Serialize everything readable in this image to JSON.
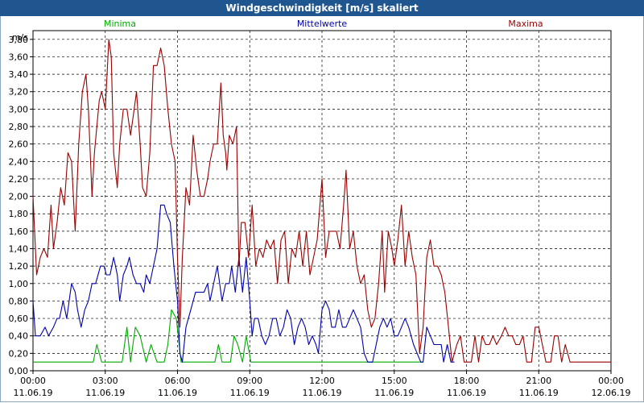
{
  "window": {
    "title": "Windgeschwindigkeit [m/s] skaliert"
  },
  "chart_data": {
    "type": "line",
    "title": "Windgeschwindigkeit [m/s] skaliert",
    "ylabel": "m/s",
    "ylim": [
      0,
      3.9
    ],
    "xlim": [
      0,
      24
    ],
    "y_ticks": [
      "0,00",
      "0,20",
      "0,40",
      "0,60",
      "0,80",
      "1,00",
      "1,20",
      "1,40",
      "1,60",
      "1,80",
      "2,00",
      "2,20",
      "2,40",
      "2,60",
      "2,80",
      "3,00",
      "3,20",
      "3,40",
      "3,60",
      "3,80"
    ],
    "x_ticks": [
      {
        "time": "00:00",
        "date": "11.06.19"
      },
      {
        "time": "03:00",
        "date": "11.06.19"
      },
      {
        "time": "06:00",
        "date": "11.06.19"
      },
      {
        "time": "09:00",
        "date": "11.06.19"
      },
      {
        "time": "12:00",
        "date": "11.06.19"
      },
      {
        "time": "15:00",
        "date": "11.06.19"
      },
      {
        "time": "18:00",
        "date": "11.06.19"
      },
      {
        "time": "21:00",
        "date": "11.06.19"
      },
      {
        "time": "00:00",
        "date": "12.06.19"
      }
    ],
    "grid": true,
    "legend_position": "top",
    "series": [
      {
        "name": "Minima",
        "color": "#00aa00",
        "points": [
          [
            0,
            0.1
          ],
          [
            2.5,
            0.1
          ],
          [
            2.65,
            0.3
          ],
          [
            2.85,
            0.1
          ],
          [
            3.7,
            0.1
          ],
          [
            3.9,
            0.5
          ],
          [
            4.05,
            0.1
          ],
          [
            4.25,
            0.5
          ],
          [
            4.45,
            0.4
          ],
          [
            4.7,
            0.1
          ],
          [
            4.9,
            0.3
          ],
          [
            5.15,
            0.1
          ],
          [
            5.45,
            0.1
          ],
          [
            5.6,
            0.3
          ],
          [
            5.75,
            0.7
          ],
          [
            5.95,
            0.6
          ],
          [
            6.15,
            0.1
          ],
          [
            7.55,
            0.1
          ],
          [
            7.7,
            0.3
          ],
          [
            7.85,
            0.1
          ],
          [
            8.2,
            0.1
          ],
          [
            8.35,
            0.4
          ],
          [
            8.5,
            0.3
          ],
          [
            8.7,
            0.1
          ],
          [
            8.85,
            0.4
          ],
          [
            9.05,
            0.1
          ],
          [
            16.2,
            0.1
          ]
        ]
      },
      {
        "name": "Mittelwerte",
        "color": "#0000aa",
        "points": [
          [
            0,
            0.8
          ],
          [
            0.1,
            0.4
          ],
          [
            0.3,
            0.4
          ],
          [
            0.5,
            0.5
          ],
          [
            0.65,
            0.4
          ],
          [
            0.85,
            0.5
          ],
          [
            1.0,
            0.6
          ],
          [
            1.1,
            0.6
          ],
          [
            1.25,
            0.8
          ],
          [
            1.4,
            0.6
          ],
          [
            1.6,
            1.0
          ],
          [
            1.75,
            0.9
          ],
          [
            1.85,
            0.7
          ],
          [
            2.0,
            0.5
          ],
          [
            2.15,
            0.7
          ],
          [
            2.3,
            0.8
          ],
          [
            2.45,
            1.0
          ],
          [
            2.6,
            1.0
          ],
          [
            2.8,
            1.2
          ],
          [
            2.95,
            1.2
          ],
          [
            3.05,
            1.1
          ],
          [
            3.2,
            1.1
          ],
          [
            3.35,
            1.3
          ],
          [
            3.5,
            1.1
          ],
          [
            3.6,
            0.8
          ],
          [
            3.75,
            1.1
          ],
          [
            3.9,
            1.2
          ],
          [
            4.0,
            1.3
          ],
          [
            4.15,
            1.1
          ],
          [
            4.3,
            1.0
          ],
          [
            4.45,
            1.0
          ],
          [
            4.6,
            0.9
          ],
          [
            4.7,
            1.1
          ],
          [
            4.85,
            1.0
          ],
          [
            5.0,
            1.2
          ],
          [
            5.15,
            1.4
          ],
          [
            5.3,
            1.9
          ],
          [
            5.45,
            1.9
          ],
          [
            5.55,
            1.8
          ],
          [
            5.7,
            1.7
          ],
          [
            5.85,
            1.2
          ],
          [
            6.0,
            0.8
          ],
          [
            6.1,
            0.2
          ],
          [
            6.2,
            0.1
          ],
          [
            6.35,
            0.5
          ],
          [
            6.55,
            0.7
          ],
          [
            6.75,
            0.9
          ],
          [
            6.95,
            0.9
          ],
          [
            7.1,
            0.9
          ],
          [
            7.25,
            1.0
          ],
          [
            7.35,
            0.8
          ],
          [
            7.5,
            1.0
          ],
          [
            7.65,
            1.2
          ],
          [
            7.75,
            1.0
          ],
          [
            7.85,
            0.8
          ],
          [
            8.0,
            1.0
          ],
          [
            8.15,
            1.0
          ],
          [
            8.25,
            1.2
          ],
          [
            8.4,
            0.9
          ],
          [
            8.55,
            1.3
          ],
          [
            8.7,
            0.9
          ],
          [
            8.85,
            1.3
          ],
          [
            9.0,
            0.8
          ],
          [
            9.1,
            0.4
          ],
          [
            9.2,
            0.6
          ],
          [
            9.35,
            0.6
          ],
          [
            9.5,
            0.4
          ],
          [
            9.65,
            0.3
          ],
          [
            9.8,
            0.4
          ],
          [
            9.95,
            0.6
          ],
          [
            10.1,
            0.6
          ],
          [
            10.25,
            0.4
          ],
          [
            10.4,
            0.5
          ],
          [
            10.55,
            0.7
          ],
          [
            10.7,
            0.6
          ],
          [
            10.85,
            0.3
          ],
          [
            11.0,
            0.5
          ],
          [
            11.15,
            0.6
          ],
          [
            11.3,
            0.5
          ],
          [
            11.45,
            0.3
          ],
          [
            11.6,
            0.4
          ],
          [
            11.75,
            0.3
          ],
          [
            11.85,
            0.2
          ],
          [
            12.0,
            0.7
          ],
          [
            12.15,
            0.8
          ],
          [
            12.3,
            0.7
          ],
          [
            12.4,
            0.5
          ],
          [
            12.55,
            0.5
          ],
          [
            12.7,
            0.7
          ],
          [
            12.85,
            0.5
          ],
          [
            13.0,
            0.5
          ],
          [
            13.15,
            0.6
          ],
          [
            13.3,
            0.7
          ],
          [
            13.45,
            0.6
          ],
          [
            13.6,
            0.5
          ],
          [
            13.75,
            0.2
          ],
          [
            13.9,
            0.1
          ],
          [
            14.1,
            0.1
          ],
          [
            14.25,
            0.3
          ],
          [
            14.4,
            0.5
          ],
          [
            14.55,
            0.6
          ],
          [
            14.7,
            0.5
          ],
          [
            14.85,
            0.6
          ],
          [
            15.0,
            0.4
          ],
          [
            15.15,
            0.4
          ],
          [
            15.3,
            0.5
          ],
          [
            15.45,
            0.6
          ],
          [
            15.6,
            0.5
          ],
          [
            15.8,
            0.3
          ],
          [
            15.95,
            0.2
          ],
          [
            16.1,
            0.1
          ],
          [
            16.2,
            0.1
          ],
          [
            16.35,
            0.5
          ],
          [
            16.5,
            0.4
          ],
          [
            16.65,
            0.3
          ],
          [
            16.8,
            0.3
          ],
          [
            16.95,
            0.3
          ],
          [
            17.05,
            0.1
          ],
          [
            17.2,
            0.3
          ],
          [
            17.35,
            0.1
          ],
          [
            17.5,
            0.1
          ]
        ]
      },
      {
        "name": "Maxima",
        "color": "#990000",
        "points": [
          [
            0,
            2.0
          ],
          [
            0.15,
            1.1
          ],
          [
            0.3,
            1.3
          ],
          [
            0.45,
            1.4
          ],
          [
            0.6,
            1.3
          ],
          [
            0.75,
            1.9
          ],
          [
            0.85,
            1.4
          ],
          [
            1.0,
            1.7
          ],
          [
            1.15,
            2.1
          ],
          [
            1.3,
            1.9
          ],
          [
            1.45,
            2.5
          ],
          [
            1.6,
            2.4
          ],
          [
            1.75,
            1.6
          ],
          [
            1.9,
            2.6
          ],
          [
            2.05,
            3.2
          ],
          [
            2.2,
            3.4
          ],
          [
            2.3,
            3.0
          ],
          [
            2.45,
            2.0
          ],
          [
            2.55,
            2.5
          ],
          [
            2.75,
            3.1
          ],
          [
            2.85,
            3.2
          ],
          [
            3.0,
            3.0
          ],
          [
            3.15,
            3.8
          ],
          [
            3.25,
            3.6
          ],
          [
            3.35,
            2.5
          ],
          [
            3.5,
            2.1
          ],
          [
            3.6,
            2.6
          ],
          [
            3.75,
            3.0
          ],
          [
            3.9,
            3.0
          ],
          [
            4.05,
            2.7
          ],
          [
            4.15,
            2.9
          ],
          [
            4.3,
            3.2
          ],
          [
            4.45,
            2.6
          ],
          [
            4.55,
            2.1
          ],
          [
            4.7,
            2.0
          ],
          [
            4.85,
            2.5
          ],
          [
            5.0,
            3.5
          ],
          [
            5.15,
            3.5
          ],
          [
            5.3,
            3.7
          ],
          [
            5.45,
            3.5
          ],
          [
            5.6,
            3.0
          ],
          [
            5.75,
            2.6
          ],
          [
            5.9,
            2.4
          ],
          [
            6.0,
            1.3
          ],
          [
            6.1,
            0.5
          ],
          [
            6.2,
            1.3
          ],
          [
            6.35,
            2.1
          ],
          [
            6.5,
            1.9
          ],
          [
            6.65,
            2.7
          ],
          [
            6.8,
            2.3
          ],
          [
            6.95,
            2.0
          ],
          [
            7.1,
            2.0
          ],
          [
            7.25,
            2.2
          ],
          [
            7.35,
            2.4
          ],
          [
            7.5,
            2.6
          ],
          [
            7.65,
            2.6
          ],
          [
            7.8,
            3.3
          ],
          [
            7.9,
            2.7
          ],
          [
            8.0,
            2.5
          ],
          [
            8.05,
            2.3
          ],
          [
            8.15,
            2.7
          ],
          [
            8.3,
            2.6
          ],
          [
            8.45,
            2.8
          ],
          [
            8.55,
            1.2
          ],
          [
            8.65,
            1.7
          ],
          [
            8.8,
            1.7
          ],
          [
            8.95,
            1.3
          ],
          [
            9.1,
            1.9
          ],
          [
            9.25,
            1.2
          ],
          [
            9.4,
            1.4
          ],
          [
            9.55,
            1.3
          ],
          [
            9.7,
            1.5
          ],
          [
            9.85,
            1.4
          ],
          [
            10.0,
            1.5
          ],
          [
            10.15,
            1.0
          ],
          [
            10.3,
            1.5
          ],
          [
            10.45,
            1.6
          ],
          [
            10.6,
            1.0
          ],
          [
            10.75,
            1.4
          ],
          [
            10.9,
            1.3
          ],
          [
            11.05,
            1.6
          ],
          [
            11.2,
            1.2
          ],
          [
            11.35,
            1.6
          ],
          [
            11.5,
            1.1
          ],
          [
            11.65,
            1.3
          ],
          [
            11.8,
            1.5
          ],
          [
            12.0,
            2.2
          ],
          [
            12.15,
            1.3
          ],
          [
            12.3,
            1.6
          ],
          [
            12.45,
            1.6
          ],
          [
            12.6,
            1.6
          ],
          [
            12.75,
            1.4
          ],
          [
            12.9,
            1.9
          ],
          [
            13.0,
            2.3
          ],
          [
            13.15,
            1.4
          ],
          [
            13.3,
            1.6
          ],
          [
            13.45,
            1.2
          ],
          [
            13.6,
            1.0
          ],
          [
            13.75,
            1.1
          ],
          [
            13.9,
            0.7
          ],
          [
            14.05,
            0.5
          ],
          [
            14.2,
            0.6
          ],
          [
            14.35,
            1.0
          ],
          [
            14.5,
            1.6
          ],
          [
            14.6,
            0.9
          ],
          [
            14.75,
            1.6
          ],
          [
            14.9,
            1.4
          ],
          [
            15.0,
            1.2
          ],
          [
            15.15,
            1.5
          ],
          [
            15.3,
            1.9
          ],
          [
            15.45,
            1.2
          ],
          [
            15.6,
            1.6
          ],
          [
            15.75,
            1.3
          ],
          [
            15.9,
            1.1
          ],
          [
            16.05,
            0.2
          ],
          [
            16.2,
            0.5
          ],
          [
            16.35,
            1.3
          ],
          [
            16.5,
            1.5
          ],
          [
            16.65,
            1.2
          ],
          [
            16.8,
            1.2
          ],
          [
            16.95,
            1.1
          ],
          [
            17.1,
            0.9
          ],
          [
            17.25,
            0.5
          ],
          [
            17.4,
            0.1
          ],
          [
            17.6,
            0.3
          ],
          [
            17.75,
            0.4
          ],
          [
            17.9,
            0.1
          ],
          [
            18.2,
            0.1
          ],
          [
            18.35,
            0.4
          ],
          [
            18.5,
            0.1
          ],
          [
            18.65,
            0.4
          ],
          [
            18.8,
            0.3
          ],
          [
            18.95,
            0.3
          ],
          [
            19.1,
            0.4
          ],
          [
            19.25,
            0.3
          ],
          [
            19.45,
            0.4
          ],
          [
            19.6,
            0.5
          ],
          [
            19.75,
            0.4
          ],
          [
            19.9,
            0.4
          ],
          [
            20.05,
            0.3
          ],
          [
            20.2,
            0.3
          ],
          [
            20.35,
            0.4
          ],
          [
            20.5,
            0.1
          ],
          [
            20.7,
            0.1
          ],
          [
            20.85,
            0.5
          ],
          [
            21.0,
            0.5
          ],
          [
            21.15,
            0.3
          ],
          [
            21.3,
            0.1
          ],
          [
            21.5,
            0.1
          ],
          [
            21.65,
            0.4
          ],
          [
            21.8,
            0.4
          ],
          [
            21.95,
            0.1
          ],
          [
            22.1,
            0.3
          ],
          [
            22.3,
            0.1
          ],
          [
            24.0,
            0.1
          ]
        ]
      }
    ]
  }
}
